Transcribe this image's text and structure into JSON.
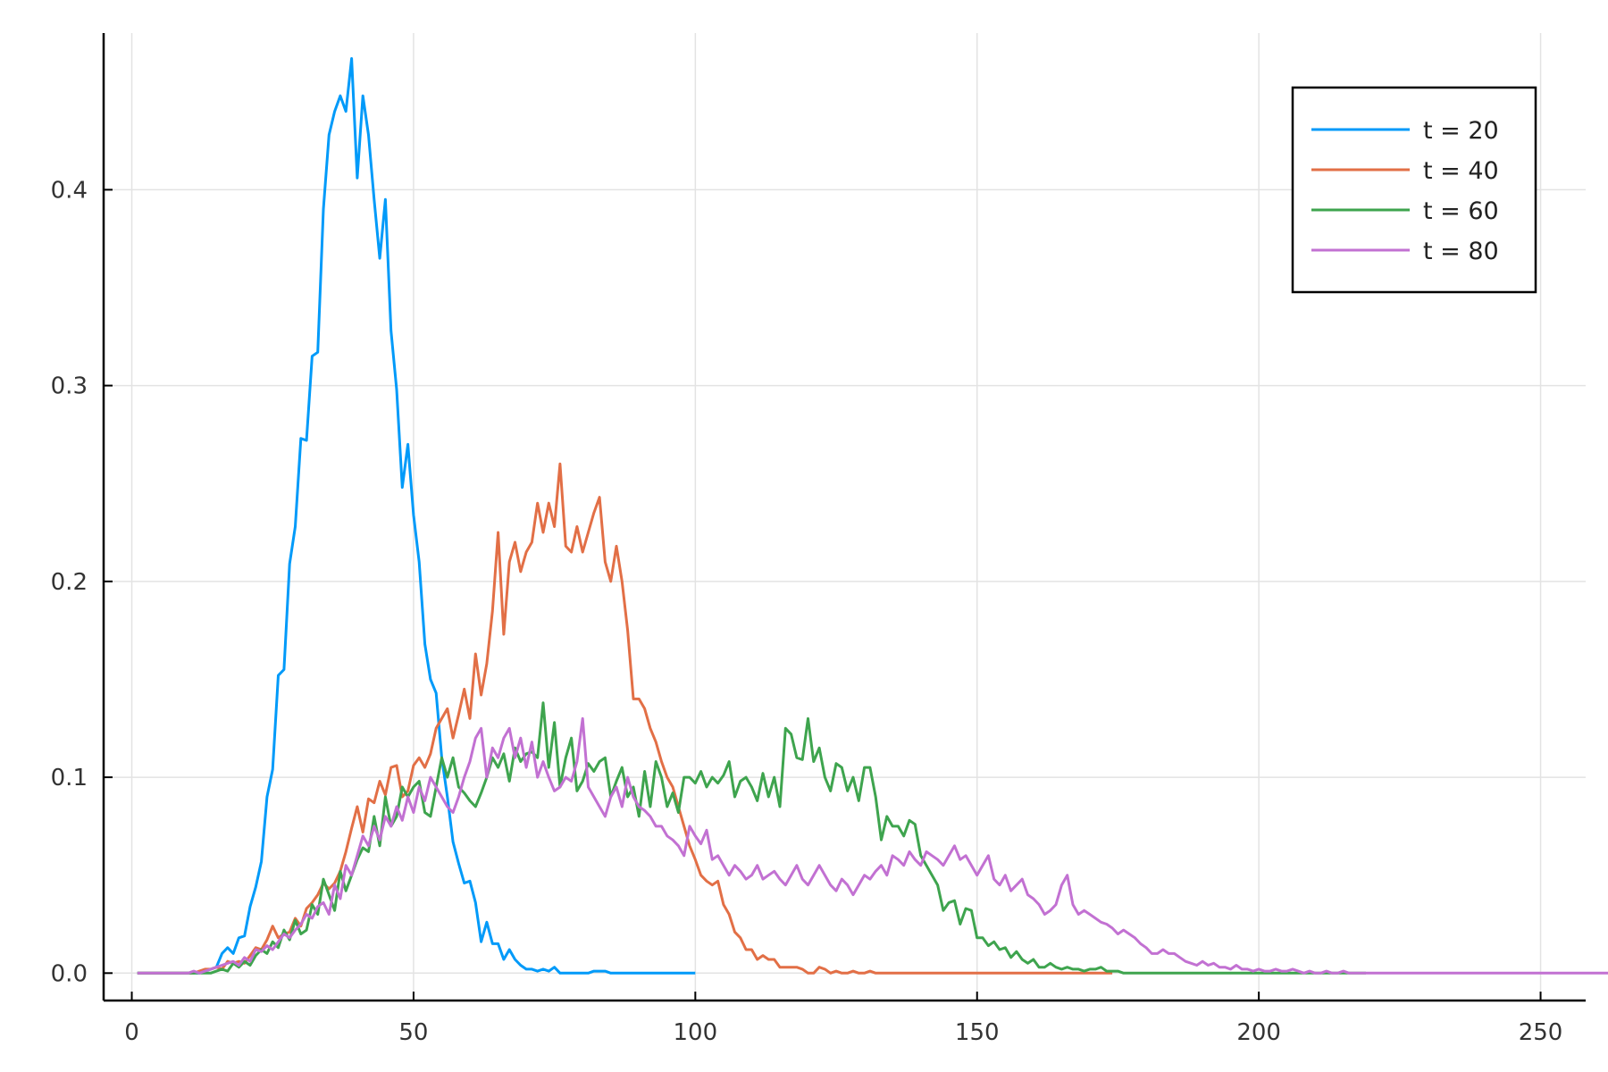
{
  "chart_data": {
    "type": "line",
    "title": "",
    "xlabel": "",
    "ylabel": "",
    "xlim": [
      -5,
      258
    ],
    "ylim": [
      -0.014,
      0.48
    ],
    "grid": true,
    "legend_position": "top-right",
    "x_ticks": [
      0,
      50,
      100,
      150,
      200,
      250
    ],
    "x_tick_labels": [
      "0",
      "50",
      "100",
      "150",
      "200",
      "250"
    ],
    "y_ticks": [
      0.0,
      0.1,
      0.2,
      0.3,
      0.4
    ],
    "y_tick_labels": [
      "0.0",
      "0.1",
      "0.2",
      "0.3",
      "0.4"
    ],
    "series": [
      {
        "name": "t = 20",
        "color": "#009AF9",
        "x_start": 1,
        "values": [
          0,
          0,
          0,
          0,
          0,
          0,
          0,
          0,
          0,
          0,
          0,
          0,
          0.001,
          0.002,
          0.003,
          0.01,
          0.013,
          0.01,
          0.018,
          0.019,
          0.034,
          0.044,
          0.057,
          0.09,
          0.104,
          0.152,
          0.155,
          0.209,
          0.228,
          0.273,
          0.272,
          0.315,
          0.317,
          0.39,
          0.428,
          0.44,
          0.448,
          0.44,
          0.467,
          0.406,
          0.448,
          0.428,
          0.395,
          0.365,
          0.395,
          0.328,
          0.298,
          0.248,
          0.27,
          0.234,
          0.21,
          0.168,
          0.15,
          0.143,
          0.11,
          0.09,
          0.067,
          0.056,
          0.046,
          0.047,
          0.036,
          0.016,
          0.026,
          0.015,
          0.015,
          0.007,
          0.012,
          0.007,
          0.004,
          0.002,
          0.002,
          0.001,
          0.002,
          0.001,
          0.003,
          0,
          0,
          0,
          0,
          0,
          0,
          0.001,
          0.001,
          0.001,
          0,
          0,
          0,
          0,
          0,
          0,
          0,
          0,
          0,
          0,
          0,
          0,
          0,
          0,
          0,
          0
        ]
      },
      {
        "name": "t = 40",
        "color": "#E26F46",
        "x_start": 1,
        "values": [
          0,
          0,
          0,
          0,
          0,
          0,
          0,
          0,
          0,
          0,
          0,
          0.001,
          0.002,
          0.002,
          0.003,
          0.002,
          0.006,
          0.005,
          0.006,
          0.005,
          0.009,
          0.013,
          0.012,
          0.017,
          0.024,
          0.018,
          0.02,
          0.021,
          0.028,
          0.024,
          0.033,
          0.036,
          0.04,
          0.046,
          0.043,
          0.046,
          0.052,
          0.062,
          0.074,
          0.085,
          0.072,
          0.089,
          0.087,
          0.098,
          0.091,
          0.105,
          0.106,
          0.09,
          0.093,
          0.106,
          0.11,
          0.105,
          0.112,
          0.125,
          0.13,
          0.135,
          0.12,
          0.132,
          0.145,
          0.13,
          0.163,
          0.142,
          0.158,
          0.185,
          0.225,
          0.173,
          0.21,
          0.22,
          0.205,
          0.215,
          0.22,
          0.24,
          0.225,
          0.24,
          0.228,
          0.26,
          0.218,
          0.215,
          0.228,
          0.215,
          0.225,
          0.235,
          0.243,
          0.21,
          0.2,
          0.218,
          0.2,
          0.175,
          0.14,
          0.14,
          0.135,
          0.125,
          0.118,
          0.108,
          0.1,
          0.095,
          0.085,
          0.075,
          0.065,
          0.058,
          0.05,
          0.047,
          0.045,
          0.047,
          0.035,
          0.03,
          0.021,
          0.018,
          0.012,
          0.012,
          0.007,
          0.009,
          0.007,
          0.007,
          0.003,
          0.003,
          0.003,
          0.003,
          0.002,
          0,
          0,
          0.003,
          0.002,
          0,
          0.001,
          0,
          0,
          0.001,
          0,
          0,
          0.001,
          0,
          0,
          0,
          0,
          0,
          0,
          0,
          0,
          0,
          0,
          0,
          0,
          0,
          0,
          0,
          0,
          0,
          0,
          0,
          0,
          0,
          0,
          0,
          0,
          0,
          0,
          0,
          0,
          0,
          0,
          0,
          0,
          0,
          0,
          0,
          0,
          0,
          0,
          0,
          0,
          0,
          0,
          0
        ]
      },
      {
        "name": "t = 60",
        "color": "#3EA44E",
        "x_start": 1,
        "values": [
          0,
          0,
          0,
          0,
          0,
          0,
          0,
          0,
          0,
          0,
          0,
          0,
          0,
          0,
          0.001,
          0.002,
          0.001,
          0.005,
          0.003,
          0.006,
          0.004,
          0.009,
          0.012,
          0.01,
          0.016,
          0.013,
          0.022,
          0.017,
          0.027,
          0.02,
          0.022,
          0.035,
          0.03,
          0.048,
          0.04,
          0.032,
          0.052,
          0.042,
          0.05,
          0.058,
          0.064,
          0.062,
          0.08,
          0.065,
          0.09,
          0.075,
          0.08,
          0.095,
          0.09,
          0.095,
          0.098,
          0.082,
          0.08,
          0.095,
          0.11,
          0.1,
          0.11,
          0.095,
          0.092,
          0.088,
          0.085,
          0.092,
          0.1,
          0.11,
          0.105,
          0.112,
          0.098,
          0.115,
          0.108,
          0.112,
          0.113,
          0.11,
          0.138,
          0.105,
          0.128,
          0.095,
          0.11,
          0.12,
          0.093,
          0.098,
          0.107,
          0.103,
          0.108,
          0.11,
          0.09,
          0.098,
          0.105,
          0.09,
          0.095,
          0.08,
          0.103,
          0.085,
          0.108,
          0.1,
          0.085,
          0.092,
          0.082,
          0.1,
          0.1,
          0.097,
          0.103,
          0.095,
          0.1,
          0.097,
          0.101,
          0.108,
          0.09,
          0.098,
          0.1,
          0.095,
          0.088,
          0.102,
          0.09,
          0.1,
          0.085,
          0.125,
          0.122,
          0.11,
          0.109,
          0.13,
          0.108,
          0.115,
          0.1,
          0.093,
          0.107,
          0.105,
          0.093,
          0.1,
          0.088,
          0.105,
          0.105,
          0.09,
          0.068,
          0.08,
          0.075,
          0.075,
          0.07,
          0.078,
          0.076,
          0.06,
          0.055,
          0.05,
          0.045,
          0.032,
          0.036,
          0.037,
          0.025,
          0.033,
          0.032,
          0.018,
          0.018,
          0.014,
          0.016,
          0.012,
          0.013,
          0.008,
          0.011,
          0.007,
          0.005,
          0.007,
          0.003,
          0.003,
          0.005,
          0.003,
          0.002,
          0.003,
          0.002,
          0.002,
          0.001,
          0.002,
          0.002,
          0.003,
          0.001,
          0.001,
          0.001,
          0,
          0,
          0,
          0,
          0,
          0,
          0,
          0,
          0,
          0,
          0,
          0,
          0,
          0,
          0,
          0,
          0,
          0,
          0,
          0,
          0,
          0,
          0,
          0,
          0,
          0,
          0,
          0,
          0,
          0,
          0,
          0,
          0,
          0,
          0,
          0,
          0,
          0,
          0,
          0,
          0,
          0,
          0,
          0
        ]
      },
      {
        "name": "t = 80",
        "color": "#C271D2",
        "x_start": 1,
        "values": [
          0,
          0,
          0,
          0,
          0,
          0,
          0,
          0,
          0,
          0,
          0.001,
          0,
          0.001,
          0.002,
          0.003,
          0.004,
          0.005,
          0.006,
          0.004,
          0.008,
          0.006,
          0.012,
          0.011,
          0.014,
          0.012,
          0.016,
          0.02,
          0.018,
          0.022,
          0.025,
          0.03,
          0.028,
          0.034,
          0.036,
          0.03,
          0.045,
          0.038,
          0.055,
          0.05,
          0.06,
          0.07,
          0.065,
          0.075,
          0.068,
          0.08,
          0.075,
          0.085,
          0.078,
          0.09,
          0.082,
          0.095,
          0.088,
          0.1,
          0.095,
          0.09,
          0.085,
          0.082,
          0.09,
          0.1,
          0.108,
          0.12,
          0.125,
          0.1,
          0.115,
          0.11,
          0.12,
          0.125,
          0.11,
          0.12,
          0.105,
          0.118,
          0.1,
          0.108,
          0.1,
          0.093,
          0.095,
          0.1,
          0.098,
          0.108,
          0.13,
          0.095,
          0.09,
          0.085,
          0.08,
          0.09,
          0.095,
          0.085,
          0.1,
          0.09,
          0.085,
          0.083,
          0.08,
          0.075,
          0.075,
          0.07,
          0.068,
          0.065,
          0.06,
          0.075,
          0.07,
          0.066,
          0.073,
          0.058,
          0.06,
          0.055,
          0.05,
          0.055,
          0.052,
          0.048,
          0.05,
          0.055,
          0.048,
          0.05,
          0.052,
          0.048,
          0.045,
          0.05,
          0.055,
          0.048,
          0.045,
          0.05,
          0.055,
          0.05,
          0.045,
          0.042,
          0.048,
          0.045,
          0.04,
          0.045,
          0.05,
          0.048,
          0.052,
          0.055,
          0.05,
          0.06,
          0.058,
          0.055,
          0.062,
          0.058,
          0.055,
          0.062,
          0.06,
          0.058,
          0.055,
          0.06,
          0.065,
          0.058,
          0.06,
          0.055,
          0.05,
          0.055,
          0.06,
          0.048,
          0.045,
          0.05,
          0.042,
          0.045,
          0.048,
          0.04,
          0.038,
          0.035,
          0.03,
          0.032,
          0.035,
          0.045,
          0.05,
          0.035,
          0.03,
          0.032,
          0.03,
          0.028,
          0.026,
          0.025,
          0.023,
          0.02,
          0.022,
          0.02,
          0.018,
          0.015,
          0.013,
          0.01,
          0.01,
          0.012,
          0.01,
          0.01,
          0.008,
          0.006,
          0.005,
          0.004,
          0.006,
          0.004,
          0.005,
          0.003,
          0.003,
          0.002,
          0.004,
          0.002,
          0.002,
          0.001,
          0.002,
          0.001,
          0.001,
          0.002,
          0.001,
          0.001,
          0.002,
          0.001,
          0,
          0.001,
          0,
          0,
          0.001,
          0,
          0,
          0.001,
          0,
          0,
          0,
          0,
          0,
          0,
          0,
          0,
          0,
          0,
          0,
          0,
          0,
          0,
          0,
          0,
          0,
          0,
          0,
          0,
          0,
          0,
          0,
          0,
          0,
          0,
          0,
          0,
          0,
          0,
          0,
          0,
          0,
          0,
          0,
          0,
          0,
          0,
          0,
          0,
          0,
          0,
          0,
          0,
          0,
          0,
          0,
          0,
          0,
          0,
          0,
          0,
          0,
          0,
          0,
          0
        ]
      }
    ]
  }
}
